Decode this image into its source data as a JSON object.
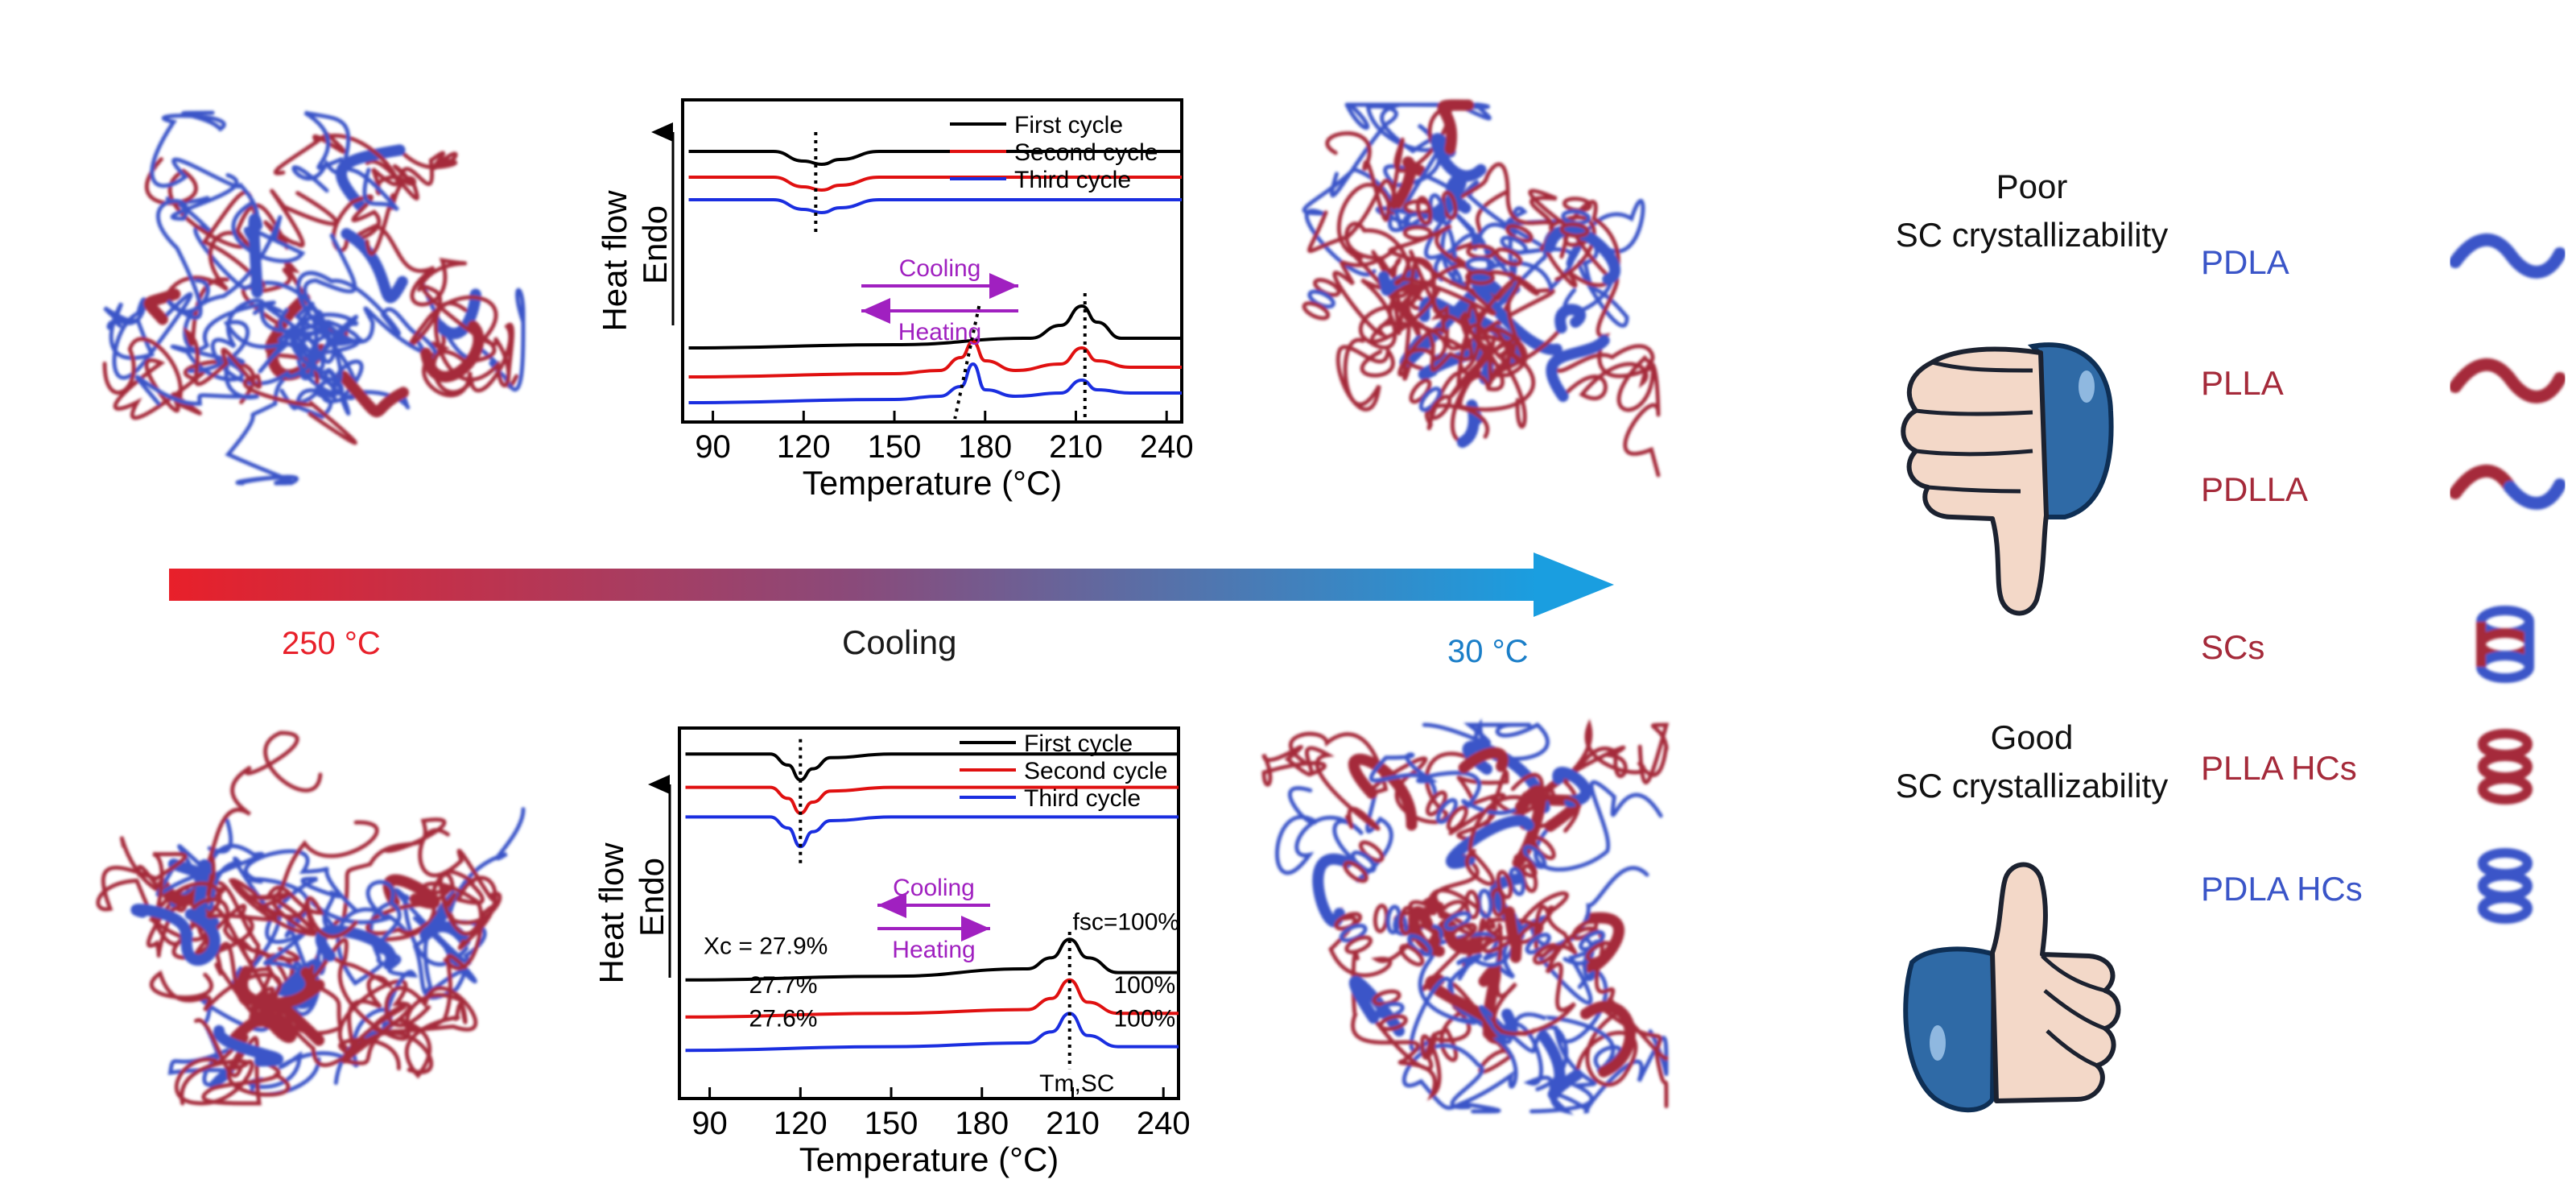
{
  "colors": {
    "pdla_blue": "#3a55c8",
    "plla_red": "#a52a3a",
    "hot_red": "#e8202a",
    "cold_blue": "#1a9ee0",
    "purple": "#a020c0",
    "cycle1": "#000000",
    "cycle2": "#e01010",
    "cycle3": "#1a2ee0"
  },
  "icons": [
    "thumbs-down-icon",
    "thumbs-up-icon"
  ],
  "arrow": {
    "start_label": "250 °C",
    "middle_label": "Cooling",
    "end_label": "30 °C"
  },
  "assessment": {
    "poor_line1": "Poor",
    "poor_line2": "SC crystallizability",
    "good_line1": "Good",
    "good_line2": "SC crystallizability"
  },
  "legend": [
    {
      "label": "PDLA",
      "color": "#3a55c8"
    },
    {
      "label": "PLLA",
      "color": "#a52a3a"
    },
    {
      "label": "PDLLA",
      "color": "#a52a3a"
    },
    {
      "label": "SCs",
      "color": "#a52a3a"
    },
    {
      "label": "PLLA HCs",
      "color": "#a52a3a"
    },
    {
      "label": "PDLA HCs",
      "color": "#3a55c8"
    }
  ],
  "chart_data": [
    {
      "type": "line",
      "xlabel": "Temperature (°C)",
      "ylabel_line1": "Heat flow",
      "ylabel_line2": "Endo",
      "xticks": [
        "90",
        "120",
        "150",
        "180",
        "210",
        "240"
      ],
      "xlim": [
        80,
        245
      ],
      "legend": [
        "First cycle",
        "Second cycle",
        "Third cycle"
      ],
      "annotations": {
        "cool": "Cooling",
        "heat": "Heating"
      },
      "series": [
        {
          "name": "First cycle",
          "color": "#000000",
          "x": [
            82,
            110,
            120,
            126,
            132,
            145,
            200,
            245
          ],
          "y": [
            8.4,
            8.4,
            8.1,
            8.0,
            8.15,
            8.4,
            8.4,
            8.4
          ]
        },
        {
          "name": "Second cycle",
          "color": "#e01010",
          "x": [
            82,
            110,
            120,
            126,
            132,
            145,
            200,
            245
          ],
          "y": [
            7.6,
            7.6,
            7.3,
            7.2,
            7.35,
            7.6,
            7.6,
            7.6
          ]
        },
        {
          "name": "Third cycle",
          "color": "#1a2ee0",
          "x": [
            82,
            110,
            120,
            126,
            132,
            145,
            200,
            245
          ],
          "y": [
            6.9,
            6.9,
            6.6,
            6.5,
            6.65,
            6.9,
            6.9,
            6.9
          ]
        },
        {
          "name": "First cycle",
          "color": "#000000",
          "x": [
            82,
            150,
            195,
            205,
            212,
            217,
            225,
            245
          ],
          "y": [
            2.3,
            2.4,
            2.6,
            3.0,
            3.6,
            3.1,
            2.6,
            2.6
          ]
        },
        {
          "name": "Second cycle",
          "color": "#e01010",
          "x": [
            82,
            150,
            165,
            172,
            176,
            180,
            190,
            205,
            212,
            217,
            228,
            245
          ],
          "y": [
            1.4,
            1.5,
            1.6,
            2.0,
            2.5,
            1.9,
            1.6,
            1.8,
            2.3,
            1.9,
            1.7,
            1.7
          ]
        },
        {
          "name": "Third cycle",
          "color": "#1a2ee0",
          "x": [
            82,
            150,
            165,
            172,
            176,
            180,
            190,
            205,
            212,
            217,
            228,
            245
          ],
          "y": [
            0.6,
            0.7,
            0.8,
            1.1,
            1.8,
            1.0,
            0.8,
            0.9,
            1.3,
            1.0,
            0.9,
            0.9
          ]
        }
      ]
    },
    {
      "type": "line",
      "xlabel": "Temperature (°C)",
      "ylabel_line1": "Heat flow",
      "ylabel_line2": "Endo",
      "xticks": [
        "90",
        "120",
        "150",
        "180",
        "210",
        "240"
      ],
      "xlim": [
        80,
        245
      ],
      "legend": [
        "First cycle",
        "Second cycle",
        "Third cycle"
      ],
      "annotations": {
        "cool": "Cooling",
        "heat": "Heating",
        "xc_label": "Xc = 27.9%",
        "xc2": "27.7%",
        "xc3": "27.6%",
        "fsc_label": "fsc=100%",
        "fsc2": "100%",
        "fsc3": "100%",
        "tm_label": "Tm,SC"
      },
      "series": [
        {
          "name": "First cycle",
          "color": "#000000",
          "x": [
            82,
            110,
            116,
            120,
            124,
            130,
            150,
            245
          ],
          "y": [
            9.3,
            9.3,
            9.0,
            8.6,
            8.9,
            9.2,
            9.3,
            9.3
          ]
        },
        {
          "name": "Second cycle",
          "color": "#e01010",
          "x": [
            82,
            110,
            116,
            120,
            124,
            130,
            150,
            245
          ],
          "y": [
            8.4,
            8.4,
            8.1,
            7.7,
            8.0,
            8.3,
            8.4,
            8.4
          ]
        },
        {
          "name": "Third cycle",
          "color": "#1a2ee0",
          "x": [
            82,
            110,
            116,
            120,
            124,
            130,
            150,
            245
          ],
          "y": [
            7.6,
            7.6,
            7.3,
            6.8,
            7.2,
            7.5,
            7.6,
            7.6
          ]
        },
        {
          "name": "First cycle",
          "color": "#000000",
          "x": [
            82,
            150,
            195,
            203,
            209,
            215,
            225,
            245
          ],
          "y": [
            3.2,
            3.3,
            3.5,
            3.8,
            4.3,
            3.8,
            3.4,
            3.4
          ]
        },
        {
          "name": "Second cycle",
          "color": "#e01010",
          "x": [
            82,
            150,
            195,
            203,
            209,
            215,
            225,
            245
          ],
          "y": [
            2.2,
            2.3,
            2.4,
            2.7,
            3.2,
            2.6,
            2.3,
            2.3
          ]
        },
        {
          "name": "Third cycle",
          "color": "#1a2ee0",
          "x": [
            82,
            150,
            195,
            203,
            209,
            215,
            225,
            245
          ],
          "y": [
            1.3,
            1.4,
            1.5,
            1.8,
            2.3,
            1.7,
            1.4,
            1.4
          ]
        }
      ]
    }
  ]
}
